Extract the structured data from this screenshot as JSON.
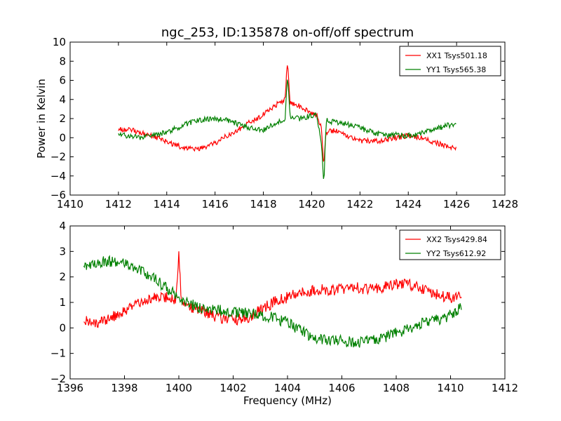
{
  "figure": {
    "title": "ngc_253, ID:135878 on-off/off spectrum",
    "xlabel": "Frequency (MHz)"
  },
  "chart_data": [
    {
      "type": "line",
      "title": "ngc_253, ID:135878 on-off/off spectrum",
      "xlabel": "",
      "ylabel": "Power in Kelvin",
      "xlim": [
        1410,
        1428
      ],
      "ylim": [
        -6,
        10
      ],
      "xticks": [
        1410,
        1412,
        1414,
        1416,
        1418,
        1420,
        1422,
        1424,
        1426,
        1428
      ],
      "yticks": [
        -6,
        -4,
        -2,
        0,
        2,
        4,
        6,
        8,
        10
      ],
      "legend_position": "top-right",
      "series": [
        {
          "name": "XX1 Tsys501.18",
          "color": "#ff0000",
          "x": [
            1412.0,
            1412.5,
            1413.0,
            1413.5,
            1414.0,
            1414.5,
            1415.0,
            1415.5,
            1416.0,
            1416.5,
            1417.0,
            1417.5,
            1418.0,
            1418.5,
            1418.9,
            1419.0,
            1419.1,
            1419.5,
            1420.0,
            1420.2,
            1420.4,
            1420.5,
            1420.6,
            1421.0,
            1421.5,
            1422.0,
            1422.5,
            1423.0,
            1423.5,
            1424.0,
            1424.5,
            1425.0,
            1425.5,
            1426.0
          ],
          "y": [
            0.9,
            0.8,
            0.5,
            0.1,
            -0.4,
            -0.9,
            -1.2,
            -1.1,
            -0.6,
            0.2,
            0.9,
            1.7,
            2.4,
            3.4,
            4.0,
            8.2,
            3.6,
            3.3,
            2.6,
            2.4,
            1.0,
            -2.8,
            0.6,
            0.8,
            0.2,
            -0.3,
            -0.4,
            -0.3,
            0.0,
            0.2,
            0.0,
            -0.4,
            -0.8,
            -1.2
          ]
        },
        {
          "name": "YY1 Tsys565.38",
          "color": "#008000",
          "x": [
            1412.0,
            1412.5,
            1413.0,
            1413.5,
            1414.0,
            1414.5,
            1415.0,
            1415.5,
            1416.0,
            1416.5,
            1417.0,
            1417.5,
            1418.0,
            1418.5,
            1418.9,
            1419.0,
            1419.1,
            1419.5,
            1420.0,
            1420.2,
            1420.4,
            1420.5,
            1420.6,
            1421.0,
            1421.5,
            1422.0,
            1422.5,
            1423.0,
            1423.5,
            1424.0,
            1424.5,
            1425.0,
            1425.5,
            1426.0
          ],
          "y": [
            0.4,
            0.1,
            0.0,
            0.3,
            0.6,
            1.1,
            1.6,
            1.9,
            2.0,
            1.8,
            1.4,
            1.0,
            0.8,
            1.5,
            2.0,
            6.8,
            2.2,
            2.0,
            2.3,
            2.5,
            -0.5,
            -5.0,
            1.8,
            1.6,
            1.4,
            1.0,
            0.6,
            0.2,
            0.3,
            0.2,
            0.5,
            0.8,
            1.2,
            1.5
          ]
        }
      ]
    },
    {
      "type": "line",
      "title": "",
      "xlabel": "Frequency (MHz)",
      "ylabel": "",
      "xlim": [
        1396,
        1412
      ],
      "ylim": [
        -2,
        4
      ],
      "xticks": [
        1396,
        1398,
        1400,
        1402,
        1404,
        1406,
        1408,
        1410,
        1412
      ],
      "yticks": [
        -2,
        -1,
        0,
        1,
        2,
        3,
        4
      ],
      "legend_position": "top-right",
      "series": [
        {
          "name": "XX2 Tsys429.84",
          "color": "#ff0000",
          "x": [
            1396.5,
            1397.0,
            1397.5,
            1398.0,
            1398.5,
            1399.0,
            1399.5,
            1399.9,
            1400.0,
            1400.1,
            1400.5,
            1401.0,
            1401.5,
            1402.0,
            1402.5,
            1403.0,
            1403.5,
            1404.0,
            1404.5,
            1405.0,
            1405.5,
            1406.0,
            1406.5,
            1407.0,
            1407.5,
            1408.0,
            1408.5,
            1409.0,
            1409.5,
            1410.0,
            1410.4
          ],
          "y": [
            0.3,
            0.2,
            0.4,
            0.7,
            1.0,
            1.2,
            1.2,
            1.1,
            2.9,
            1.0,
            0.8,
            0.6,
            0.4,
            0.3,
            0.4,
            0.7,
            1.0,
            1.2,
            1.4,
            1.5,
            1.5,
            1.5,
            1.6,
            1.5,
            1.6,
            1.7,
            1.7,
            1.5,
            1.3,
            1.2,
            1.3
          ]
        },
        {
          "name": "YY2 Tsys612.92",
          "color": "#008000",
          "x": [
            1396.5,
            1397.0,
            1397.5,
            1398.0,
            1398.5,
            1399.0,
            1399.5,
            1400.0,
            1400.5,
            1401.0,
            1401.5,
            1402.0,
            1402.5,
            1403.0,
            1403.5,
            1404.0,
            1404.5,
            1405.0,
            1405.5,
            1406.0,
            1406.5,
            1407.0,
            1407.5,
            1408.0,
            1408.5,
            1409.0,
            1409.5,
            1410.0,
            1410.4
          ],
          "y": [
            2.4,
            2.6,
            2.6,
            2.5,
            2.3,
            2.0,
            1.6,
            1.2,
            0.9,
            0.7,
            0.7,
            0.6,
            0.6,
            0.5,
            0.4,
            0.2,
            -0.1,
            -0.4,
            -0.5,
            -0.5,
            -0.6,
            -0.5,
            -0.4,
            -0.2,
            0.0,
            0.2,
            0.3,
            0.5,
            0.8
          ]
        }
      ]
    }
  ]
}
